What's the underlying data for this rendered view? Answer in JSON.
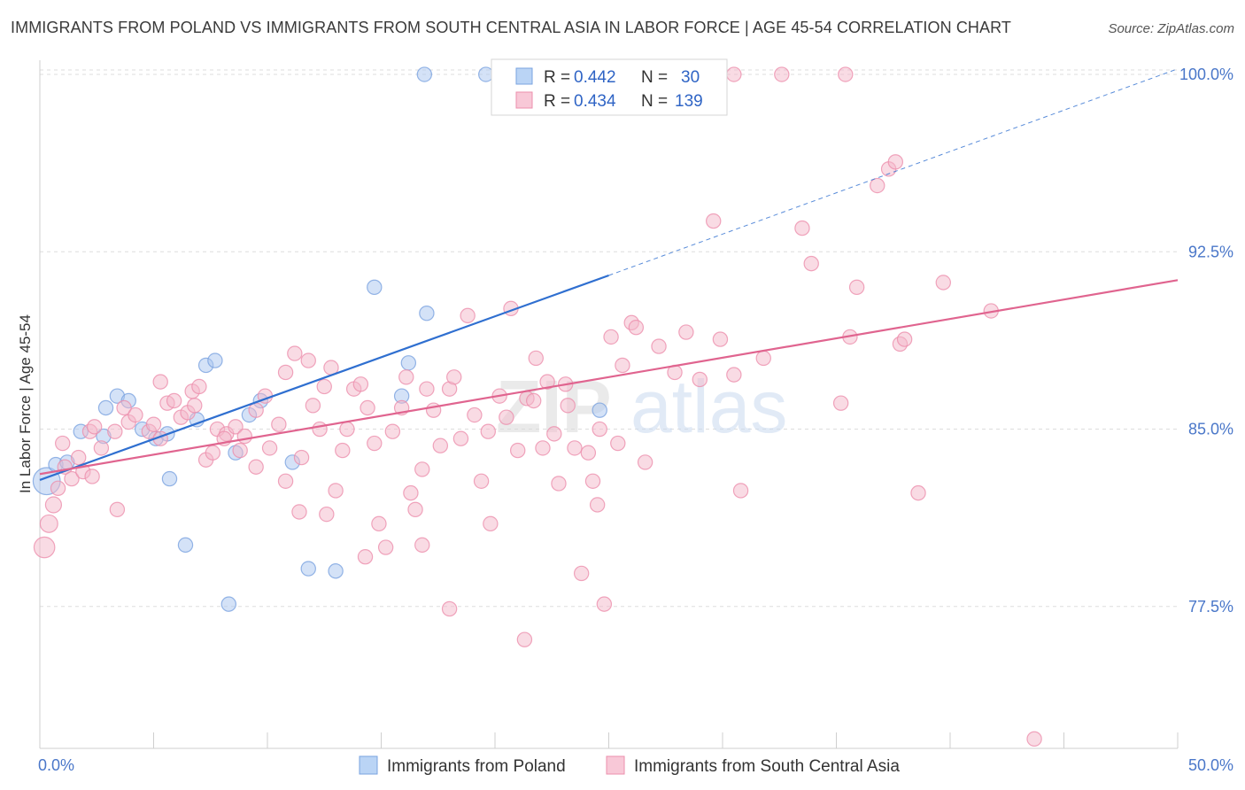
{
  "title": "IMMIGRANTS FROM POLAND VS IMMIGRANTS FROM SOUTH CENTRAL ASIA IN LABOR FORCE | AGE 45-54 CORRELATION CHART",
  "source": "Source: ZipAtlas.com",
  "watermark": {
    "zip": "ZIP",
    "atlas": "atlas"
  },
  "legend_box": {
    "rows": [
      {
        "r_label": "R = ",
        "r_value": "0.442",
        "n_label": "N = ",
        "n_value": "30",
        "color": "#a9c6f0"
      },
      {
        "r_label": "R = ",
        "r_value": "0.434",
        "n_label": "N = ",
        "n_value": "139",
        "color": "#f4b7ca"
      }
    ]
  },
  "bottom_legend": [
    {
      "label": "Immigrants from Poland",
      "color": "#a9c6f0"
    },
    {
      "label": "Immigrants from South Central Asia",
      "color": "#f4b7ca"
    }
  ],
  "chart_data": {
    "type": "scatter",
    "title": "IMMIGRANTS FROM POLAND VS IMMIGRANTS FROM SOUTH CENTRAL ASIA IN LABOR FORCE | AGE 45-54 CORRELATION CHART",
    "xlabel": "",
    "ylabel": "In Labor Force | Age 45-54",
    "xlim": [
      0,
      50
    ],
    "ylim": [
      71.5,
      100.6
    ],
    "x_tick_labels": [
      "0.0%",
      "50.0%"
    ],
    "y_ticks": [
      77.5,
      85.0,
      92.5,
      100.0
    ],
    "y_tick_labels": [
      "77.5%",
      "85.0%",
      "92.5%",
      "100.0%"
    ],
    "grid": true,
    "legend_position": "top-center",
    "series": [
      {
        "name": "Immigrants from Poland",
        "color": "#a9c6f0",
        "stroke": "#7aa3e0",
        "line_color": "#2f6fd0",
        "R": 0.442,
        "N": 30,
        "trend": {
          "x": [
            0,
            25
          ],
          "y": [
            82.85,
            91.5
          ]
        },
        "trend_dashed": {
          "x": [
            25,
            49.9
          ],
          "y": [
            91.5,
            100.2
          ]
        },
        "points": [
          [
            0.3,
            82.8,
            1.7
          ],
          [
            0.7,
            83.5,
            0.9
          ],
          [
            1.2,
            83.6,
            0.9
          ],
          [
            1.8,
            84.9,
            0.9
          ],
          [
            2.9,
            85.9,
            0.9
          ],
          [
            2.8,
            84.7,
            0.9
          ],
          [
            3.4,
            86.4,
            0.9
          ],
          [
            3.9,
            86.2,
            0.9
          ],
          [
            4.5,
            85.0,
            0.9
          ],
          [
            5.1,
            84.6,
            0.9
          ],
          [
            5.6,
            84.8,
            0.9
          ],
          [
            5.7,
            82.9,
            0.9
          ],
          [
            6.4,
            80.1,
            0.9
          ],
          [
            6.9,
            85.4,
            0.9
          ],
          [
            7.3,
            87.7,
            0.9
          ],
          [
            7.7,
            87.9,
            0.9
          ],
          [
            8.3,
            77.6,
            0.9
          ],
          [
            8.6,
            84.0,
            0.9
          ],
          [
            9.2,
            85.6,
            0.9
          ],
          [
            9.7,
            86.2,
            0.9
          ],
          [
            11.1,
            83.6,
            0.9
          ],
          [
            11.8,
            79.1,
            0.9
          ],
          [
            13.0,
            79.0,
            0.9
          ],
          [
            14.7,
            91.0,
            0.9
          ],
          [
            15.9,
            86.4,
            0.9
          ],
          [
            16.2,
            87.8,
            0.9
          ],
          [
            17.0,
            89.9,
            0.9
          ],
          [
            16.9,
            100.0,
            0.9
          ],
          [
            19.6,
            100.0,
            0.9
          ],
          [
            24.6,
            85.8,
            0.9
          ]
        ]
      },
      {
        "name": "Immigrants from South Central Asia",
        "color": "#f4b7ca",
        "stroke": "#ec8fac",
        "line_color": "#e0648f",
        "R": 0.434,
        "N": 139,
        "trend": {
          "x": [
            0,
            50
          ],
          "y": [
            83.1,
            91.3
          ]
        },
        "points": [
          [
            0.2,
            80.0,
            1.3
          ],
          [
            0.4,
            81.0,
            1.1
          ],
          [
            0.6,
            81.8,
            1.0
          ],
          [
            0.8,
            82.5,
            0.9
          ],
          [
            1.0,
            84.4,
            0.9
          ],
          [
            1.1,
            83.4,
            0.9
          ],
          [
            1.4,
            82.9,
            0.9
          ],
          [
            1.7,
            83.8,
            0.9
          ],
          [
            1.9,
            83.2,
            0.9
          ],
          [
            2.2,
            84.9,
            0.9
          ],
          [
            2.4,
            85.1,
            0.9
          ],
          [
            2.7,
            84.2,
            0.9
          ],
          [
            3.3,
            84.9,
            0.9
          ],
          [
            3.7,
            85.9,
            0.9
          ],
          [
            3.9,
            85.3,
            0.9
          ],
          [
            4.2,
            85.6,
            0.9
          ],
          [
            4.8,
            84.9,
            0.9
          ],
          [
            5.0,
            85.2,
            0.9
          ],
          [
            5.3,
            84.6,
            0.9
          ],
          [
            5.6,
            86.1,
            0.9
          ],
          [
            5.9,
            86.2,
            0.9
          ],
          [
            6.2,
            85.5,
            0.9
          ],
          [
            6.5,
            85.7,
            0.9
          ],
          [
            6.7,
            86.6,
            0.9
          ],
          [
            7.0,
            86.8,
            0.9
          ],
          [
            7.3,
            83.7,
            0.9
          ],
          [
            7.6,
            84.0,
            0.9
          ],
          [
            7.8,
            85.0,
            0.9
          ],
          [
            8.2,
            84.8,
            0.9
          ],
          [
            8.6,
            85.1,
            0.9
          ],
          [
            8.8,
            84.1,
            0.9
          ],
          [
            9.0,
            84.7,
            0.9
          ],
          [
            9.5,
            85.8,
            0.9
          ],
          [
            9.9,
            86.4,
            0.9
          ],
          [
            10.1,
            84.2,
            0.9
          ],
          [
            10.5,
            85.2,
            0.9
          ],
          [
            10.8,
            87.4,
            0.9
          ],
          [
            11.2,
            88.2,
            0.9
          ],
          [
            11.5,
            83.8,
            0.9
          ],
          [
            11.8,
            87.9,
            0.9
          ],
          [
            12.0,
            86.0,
            0.9
          ],
          [
            12.3,
            85.0,
            0.9
          ],
          [
            12.5,
            86.8,
            0.9
          ],
          [
            12.8,
            87.6,
            0.9
          ],
          [
            13.0,
            82.4,
            0.9
          ],
          [
            13.3,
            84.1,
            0.9
          ],
          [
            13.5,
            85.0,
            0.9
          ],
          [
            13.8,
            86.7,
            0.9
          ],
          [
            14.1,
            86.9,
            0.9
          ],
          [
            14.4,
            85.9,
            0.9
          ],
          [
            14.7,
            84.4,
            0.9
          ],
          [
            14.9,
            81.0,
            0.9
          ],
          [
            15.2,
            80.0,
            0.9
          ],
          [
            15.5,
            84.9,
            0.9
          ],
          [
            15.9,
            85.9,
            0.9
          ],
          [
            16.1,
            87.2,
            0.9
          ],
          [
            16.3,
            82.3,
            0.9
          ],
          [
            16.5,
            81.6,
            0.9
          ],
          [
            16.8,
            83.3,
            0.9
          ],
          [
            17.0,
            86.7,
            0.9
          ],
          [
            17.3,
            85.8,
            0.9
          ],
          [
            17.6,
            84.3,
            0.9
          ],
          [
            18.0,
            86.7,
            0.9
          ],
          [
            18.2,
            87.2,
            0.9
          ],
          [
            18.5,
            84.6,
            0.9
          ],
          [
            18.8,
            89.8,
            0.9
          ],
          [
            19.1,
            85.6,
            0.9
          ],
          [
            19.4,
            82.8,
            0.9
          ],
          [
            19.7,
            84.9,
            0.9
          ],
          [
            19.8,
            81.0,
            0.9
          ],
          [
            20.2,
            86.4,
            0.9
          ],
          [
            20.5,
            85.5,
            0.9
          ],
          [
            20.7,
            90.1,
            0.9
          ],
          [
            21.0,
            84.1,
            0.9
          ],
          [
            21.4,
            86.3,
            0.9
          ],
          [
            21.7,
            86.2,
            0.9
          ],
          [
            22.1,
            84.2,
            0.9
          ],
          [
            22.3,
            87.0,
            0.9
          ],
          [
            22.6,
            84.8,
            0.9
          ],
          [
            22.8,
            82.7,
            0.9
          ],
          [
            23.2,
            86.0,
            0.9
          ],
          [
            23.5,
            84.2,
            0.9
          ],
          [
            23.8,
            78.9,
            0.9
          ],
          [
            24.1,
            84.0,
            0.9
          ],
          [
            24.3,
            82.8,
            0.9
          ],
          [
            24.6,
            85.0,
            0.9
          ],
          [
            24.8,
            77.6,
            0.9
          ],
          [
            25.1,
            88.9,
            0.9
          ],
          [
            25.4,
            84.4,
            0.9
          ],
          [
            25.6,
            87.7,
            0.9
          ],
          [
            26.0,
            89.5,
            0.9
          ],
          [
            26.2,
            89.3,
            0.9
          ],
          [
            26.6,
            83.6,
            0.9
          ],
          [
            23.1,
            86.9,
            0.9
          ],
          [
            21.3,
            76.1,
            0.9
          ],
          [
            27.9,
            87.4,
            0.9
          ],
          [
            28.4,
            89.1,
            0.9
          ],
          [
            29.0,
            87.1,
            0.9
          ],
          [
            29.6,
            93.8,
            0.9
          ],
          [
            29.9,
            88.8,
            0.9
          ],
          [
            30.5,
            87.3,
            0.9
          ],
          [
            30.8,
            82.4,
            0.9
          ],
          [
            31.8,
            88.0,
            0.9
          ],
          [
            32.6,
            100.0,
            0.9
          ],
          [
            33.5,
            93.5,
            0.9
          ],
          [
            33.9,
            92.0,
            0.9
          ],
          [
            35.2,
            86.1,
            0.9
          ],
          [
            35.6,
            88.9,
            0.9
          ],
          [
            35.9,
            91.0,
            0.9
          ],
          [
            36.8,
            95.3,
            0.9
          ],
          [
            37.3,
            96.0,
            0.9
          ],
          [
            37.6,
            96.3,
            0.9
          ],
          [
            37.8,
            88.6,
            0.9
          ],
          [
            38.0,
            88.8,
            0.9
          ],
          [
            38.6,
            82.3,
            0.9
          ],
          [
            39.7,
            91.2,
            0.9
          ],
          [
            41.8,
            90.0,
            0.9
          ],
          [
            35.4,
            100.0,
            0.9
          ],
          [
            30.5,
            100.0,
            0.9
          ],
          [
            43.7,
            71.9,
            0.9
          ],
          [
            12.6,
            81.4,
            0.9
          ],
          [
            14.3,
            79.6,
            0.9
          ],
          [
            18.0,
            77.4,
            0.9
          ],
          [
            16.8,
            80.1,
            0.9
          ],
          [
            11.4,
            81.5,
            0.9
          ],
          [
            10.8,
            82.8,
            0.9
          ],
          [
            9.5,
            83.4,
            0.9
          ],
          [
            8.1,
            84.6,
            0.9
          ],
          [
            6.8,
            86.0,
            0.9
          ],
          [
            5.3,
            87.0,
            0.9
          ],
          [
            3.4,
            81.6,
            0.9
          ],
          [
            2.3,
            83.0,
            0.9
          ],
          [
            21.8,
            88.0,
            0.9
          ],
          [
            24.5,
            81.8,
            0.9
          ],
          [
            27.2,
            88.5,
            0.9
          ]
        ]
      }
    ]
  }
}
